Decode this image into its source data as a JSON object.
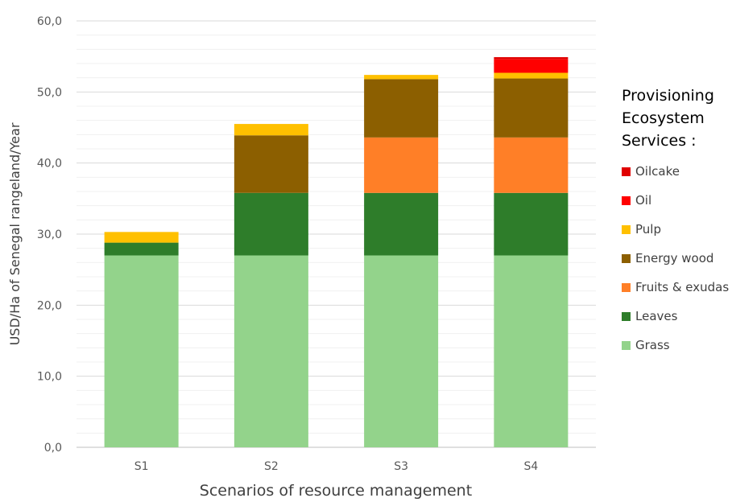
{
  "chart_data": {
    "type": "bar",
    "stacked": true,
    "categories": [
      "S1",
      "S2",
      "S3",
      "S4"
    ],
    "series": [
      {
        "name": "Grass",
        "color": "#93d38b",
        "values": [
          27.0,
          27.0,
          27.0,
          27.0
        ]
      },
      {
        "name": "Leaves",
        "color": "#2e7d2a",
        "values": [
          1.8,
          8.8,
          8.8,
          8.8
        ]
      },
      {
        "name": "Fruits & exudas",
        "color": "#ff7f27",
        "values": [
          0.0,
          0.0,
          7.8,
          7.8
        ]
      },
      {
        "name": "Energy wood",
        "color": "#8c5f00",
        "values": [
          0.0,
          8.1,
          8.2,
          8.3
        ]
      },
      {
        "name": "Pulp",
        "color": "#ffc000",
        "values": [
          1.5,
          1.6,
          0.6,
          0.8
        ]
      },
      {
        "name": "Oil",
        "color": "#ff0000",
        "values": [
          0.0,
          0.0,
          0.0,
          1.9
        ]
      },
      {
        "name": "Oilcake",
        "color": "#e00000",
        "values": [
          0.0,
          0.0,
          0.0,
          0.3
        ]
      }
    ],
    "ylim": [
      0,
      60
    ],
    "yticks": [
      "0,0",
      "10,0",
      "20,0",
      "30,0",
      "40,0",
      "50,0",
      "60,0"
    ],
    "xlabel": "Scenarios of resource management",
    "ylabel": "USD/Ha of Senegal rangeland/Year",
    "grid": true,
    "legend_position": "right",
    "legend_title": "Provisioning Ecosystem Services :",
    "legend_order": [
      "Oilcake",
      "Oil",
      "Pulp",
      "Energy wood",
      "Fruits & exudas",
      "Leaves",
      "Grass"
    ]
  }
}
